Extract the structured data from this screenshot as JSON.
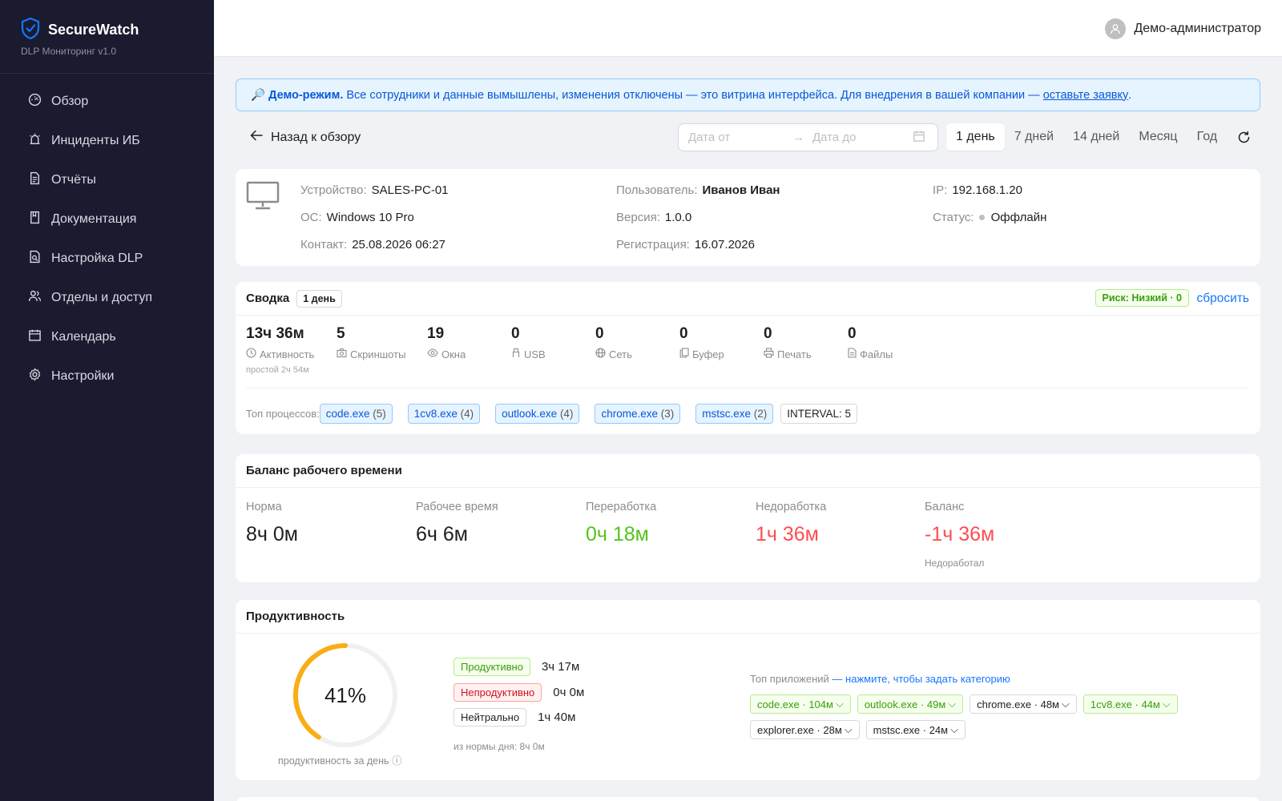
{
  "sidebar": {
    "brand_title": "SecureWatch",
    "brand_sub": "DLP Мониторинг v1.0",
    "items": [
      {
        "label": "Обзор",
        "icon": "dashboard-icon"
      },
      {
        "label": "Инциденты ИБ",
        "icon": "alarm-icon"
      },
      {
        "label": "Отчёты",
        "icon": "file-text-icon"
      },
      {
        "label": "Документация",
        "icon": "book-icon"
      },
      {
        "label": "Настройка DLP",
        "icon": "file-search-icon"
      },
      {
        "label": "Отделы и доступ",
        "icon": "team-icon"
      },
      {
        "label": "Календарь",
        "icon": "calendar-icon"
      },
      {
        "label": "Настройки",
        "icon": "gear-icon"
      }
    ]
  },
  "header": {
    "user_name": "Демо-администратор"
  },
  "banner": {
    "emoji": "🔎",
    "title": "Демо-режим.",
    "text": "Все сотрудники и данные вымышлены, изменения отключены — это витрина интерфейса. Для внедрения в вашей компании —",
    "link": "оставьте заявку",
    "end": "."
  },
  "toolbar": {
    "back_label": "Назад к обзору",
    "date_from_placeholder": "Дата от",
    "date_to_placeholder": "Дата до",
    "arrow": "→",
    "periods": [
      "1 день",
      "7 дней",
      "14 дней",
      "Месяц",
      "Год"
    ],
    "active_period": "1 день"
  },
  "device": {
    "device_label": "Устройство:",
    "device_value": "SALES-PC-01",
    "os_label": "ОС:",
    "os_value": "Windows 10 Pro",
    "contact_label": "Контакт:",
    "contact_value": "25.08.2026 06:27",
    "user_label": "Пользователь:",
    "user_value": "Иванов Иван",
    "version_label": "Версия:",
    "version_value": "1.0.0",
    "reg_label": "Регистрация:",
    "reg_value": "16.07.2026",
    "ip_label": "IP:",
    "ip_value": "192.168.1.20",
    "status_label": "Статус:",
    "status_value": "Оффлайн"
  },
  "summary": {
    "title": "Сводка",
    "period_tag": "1 день",
    "risk": "Риск: Низкий · 0",
    "reset": "сбросить",
    "stats": [
      {
        "value": "13ч 36м",
        "label": "Активность",
        "icon": "clock-icon",
        "sub": "простой 2ч 54м"
      },
      {
        "value": "5",
        "label": "Скриншоты",
        "icon": "camera-icon"
      },
      {
        "value": "19",
        "label": "Окна",
        "icon": "eye-icon"
      },
      {
        "value": "0",
        "label": "USB",
        "icon": "usb-icon"
      },
      {
        "value": "0",
        "label": "Сеть",
        "icon": "globe-icon"
      },
      {
        "value": "0",
        "label": "Буфер",
        "icon": "copy-icon"
      },
      {
        "value": "0",
        "label": "Печать",
        "icon": "printer-icon"
      },
      {
        "value": "0",
        "label": "Файлы",
        "icon": "file-icon"
      }
    ],
    "top_label": "Топ процессов:",
    "processes": [
      {
        "name": "code.exe",
        "count": "(5)"
      },
      {
        "name": "1cv8.exe",
        "count": "(4)"
      },
      {
        "name": "outlook.exe",
        "count": "(4)"
      },
      {
        "name": "chrome.exe",
        "count": "(3)"
      },
      {
        "name": "mstsc.exe",
        "count": "(2)"
      }
    ],
    "interval_tag": "INTERVAL: 5"
  },
  "balance": {
    "title": "Баланс рабочего времени",
    "cols": [
      {
        "label": "Норма",
        "value": "8ч 0м"
      },
      {
        "label": "Рабочее время",
        "value": "6ч 6м"
      },
      {
        "label": "Переработка",
        "value": "0ч 18м"
      },
      {
        "label": "Недоработка",
        "value": "1ч 36м"
      },
      {
        "label": "Баланс",
        "value": "-1ч 36м",
        "note": "Недоработал"
      }
    ]
  },
  "productivity": {
    "title": "Продуктивность",
    "percent": 41,
    "percent_text": "41%",
    "caption": "продуктивность за день",
    "info_icon": "ⓘ",
    "categories": [
      {
        "label": "Продуктивно",
        "value": "3ч 17м"
      },
      {
        "label": "Непродуктивно",
        "value": "0ч 0м"
      },
      {
        "label": "Нейтрально",
        "value": "1ч 40м"
      }
    ],
    "norm_text": "из нормы дня: 8ч 0м",
    "apps_title": "Топ приложений",
    "apps_hint": "— нажмите, чтобы задать категорию",
    "apps": [
      {
        "label": "code.exe · 104м",
        "kind": "productive"
      },
      {
        "label": "outlook.exe · 49м",
        "kind": "productive"
      },
      {
        "label": "chrome.exe · 48м",
        "kind": "neutral"
      },
      {
        "label": "1cv8.exe · 44м",
        "kind": "productive"
      },
      {
        "label": "explorer.exe · 28м",
        "kind": "neutral"
      },
      {
        "label": "mstsc.exe · 24м",
        "kind": "neutral"
      }
    ],
    "colors": {
      "gauge": "#faad14",
      "track": "#f0f0f0"
    }
  }
}
